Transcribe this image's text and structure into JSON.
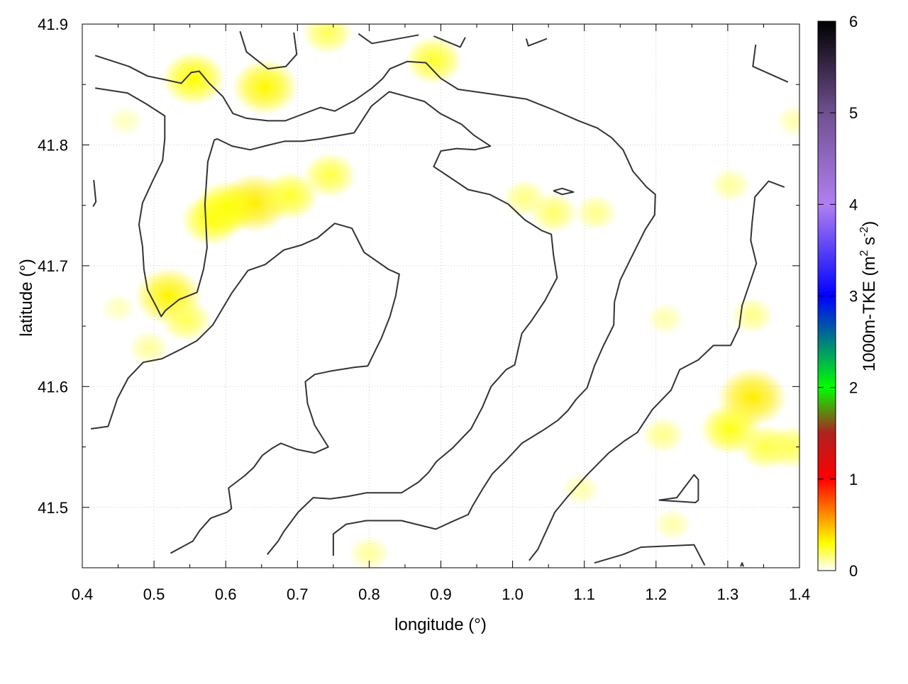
{
  "chart_data": {
    "type": "heatmap",
    "title": "",
    "xlabel": "longitude (°)",
    "ylabel": "latitude (°)",
    "xlim": [
      0.4,
      1.4
    ],
    "ylim": [
      41.45,
      41.9
    ],
    "xticks": [
      "0.4",
      "0.5",
      "0.6",
      "0.7",
      "0.8",
      "0.9",
      "1.0",
      "1.1",
      "1.2",
      "1.3",
      "1.4"
    ],
    "yticks": [
      "41.5",
      "41.6",
      "41.7",
      "41.8",
      "41.9"
    ],
    "grid": true,
    "colorbar": {
      "label": "1000m-TKE (m",
      "label_sup1": "2",
      "label_mid": " s",
      "label_sup2": "-2",
      "label_end": ")",
      "range": [
        0,
        6
      ],
      "ticks": [
        "0",
        "1",
        "2",
        "3",
        "4",
        "5",
        "6"
      ],
      "stops": [
        [
          0,
          "#ffffff"
        ],
        [
          0.3,
          "#ffff00"
        ],
        [
          1,
          "#ff0000"
        ],
        [
          1.5,
          "#b02020"
        ],
        [
          2,
          "#00ff00"
        ],
        [
          2.5,
          "#008080"
        ],
        [
          3,
          "#0000ff"
        ],
        [
          4,
          "#b080f0"
        ],
        [
          5,
          "#705090"
        ],
        [
          6,
          "#000000"
        ]
      ]
    },
    "contour_color": "#333333",
    "field_hotspots": [
      {
        "lon": 0.555,
        "lat": 41.855,
        "value": 0.3
      },
      {
        "lon": 0.655,
        "lat": 41.848,
        "value": 0.32
      },
      {
        "lon": 0.64,
        "lat": 41.752,
        "value": 0.35
      },
      {
        "lon": 0.6,
        "lat": 41.748,
        "value": 0.3
      },
      {
        "lon": 0.58,
        "lat": 41.738,
        "value": 0.28
      },
      {
        "lon": 0.69,
        "lat": 41.758,
        "value": 0.25
      },
      {
        "lon": 0.745,
        "lat": 41.775,
        "value": 0.22
      },
      {
        "lon": 0.52,
        "lat": 41.675,
        "value": 0.33
      },
      {
        "lon": 0.545,
        "lat": 41.655,
        "value": 0.2
      },
      {
        "lon": 0.493,
        "lat": 41.632,
        "value": 0.12
      },
      {
        "lon": 0.89,
        "lat": 41.87,
        "value": 0.25
      },
      {
        "lon": 0.742,
        "lat": 41.893,
        "value": 0.2
      },
      {
        "lon": 1.017,
        "lat": 41.756,
        "value": 0.15
      },
      {
        "lon": 1.057,
        "lat": 41.744,
        "value": 0.18
      },
      {
        "lon": 1.116,
        "lat": 41.744,
        "value": 0.14
      },
      {
        "lon": 1.334,
        "lat": 41.591,
        "value": 0.35
      },
      {
        "lon": 1.304,
        "lat": 41.565,
        "value": 0.28
      },
      {
        "lon": 1.353,
        "lat": 41.55,
        "value": 0.22
      },
      {
        "lon": 1.388,
        "lat": 41.55,
        "value": 0.2
      },
      {
        "lon": 1.21,
        "lat": 41.56,
        "value": 0.14
      },
      {
        "lon": 1.304,
        "lat": 41.767,
        "value": 0.12
      },
      {
        "lon": 1.334,
        "lat": 41.659,
        "value": 0.14
      },
      {
        "lon": 1.213,
        "lat": 41.656,
        "value": 0.1
      },
      {
        "lon": 0.8,
        "lat": 41.462,
        "value": 0.12
      },
      {
        "lon": 1.223,
        "lat": 41.486,
        "value": 0.1
      },
      {
        "lon": 1.095,
        "lat": 41.515,
        "value": 0.1
      },
      {
        "lon": 1.394,
        "lat": 41.82,
        "value": 0.1
      },
      {
        "lon": 0.46,
        "lat": 41.82,
        "value": 0.08
      },
      {
        "lon": 0.45,
        "lat": 41.665,
        "value": 0.08
      }
    ],
    "contours": [
      [
        [
          0.418,
          41.874
        ],
        [
          0.465,
          41.865
        ],
        [
          0.491,
          41.857
        ],
        [
          0.515,
          41.854
        ],
        [
          0.538,
          41.851
        ],
        [
          0.552,
          41.86
        ],
        [
          0.563,
          41.861
        ],
        [
          0.577,
          41.851
        ],
        [
          0.596,
          41.84
        ],
        [
          0.61,
          41.826
        ],
        [
          0.629,
          41.822
        ],
        [
          0.659,
          41.82
        ],
        [
          0.683,
          41.82
        ],
        [
          0.701,
          41.824
        ],
        [
          0.732,
          41.831
        ],
        [
          0.752,
          41.828
        ],
        [
          0.78,
          41.837
        ],
        [
          0.804,
          41.847
        ],
        [
          0.819,
          41.855
        ],
        [
          0.829,
          41.863
        ],
        [
          0.853,
          41.869
        ],
        [
          0.879,
          41.868
        ],
        [
          0.9,
          41.855
        ],
        [
          0.924,
          41.846
        ],
        [
          0.972,
          41.842
        ],
        [
          1.019,
          41.838
        ],
        [
          1.057,
          41.829
        ],
        [
          1.092,
          41.82
        ],
        [
          1.118,
          41.814
        ],
        [
          1.138,
          41.806
        ],
        [
          1.154,
          41.796
        ],
        [
          1.168,
          41.778
        ],
        [
          1.187,
          41.765
        ],
        [
          1.199,
          41.759
        ],
        [
          1.198,
          41.742
        ],
        [
          1.185,
          41.73
        ],
        [
          1.164,
          41.705
        ],
        [
          1.15,
          41.688
        ],
        [
          1.142,
          41.67
        ],
        [
          1.141,
          41.651
        ],
        [
          1.126,
          41.633
        ],
        [
          1.114,
          41.617
        ],
        [
          1.104,
          41.599
        ],
        [
          1.088,
          41.589
        ],
        [
          1.077,
          41.58
        ],
        [
          1.063,
          41.572
        ],
        [
          1.043,
          41.564
        ],
        [
          1.013,
          41.553
        ],
        [
          0.991,
          41.539
        ],
        [
          0.972,
          41.528
        ],
        [
          0.958,
          41.515
        ],
        [
          0.944,
          41.501
        ],
        [
          0.938,
          41.494
        ],
        [
          0.915,
          41.488
        ],
        [
          0.893,
          41.482
        ],
        [
          0.845,
          41.489
        ],
        [
          0.796,
          41.489
        ],
        [
          0.768,
          41.486
        ],
        [
          0.75,
          41.478
        ],
        [
          0.75,
          41.46
        ]
      ],
      [
        [
          0.418,
          41.847
        ],
        [
          0.463,
          41.843
        ],
        [
          0.489,
          41.834
        ],
        [
          0.515,
          41.824
        ],
        [
          0.515,
          41.805
        ],
        [
          0.512,
          41.787
        ],
        [
          0.498,
          41.77
        ],
        [
          0.484,
          41.752
        ],
        [
          0.479,
          41.734
        ],
        [
          0.484,
          41.716
        ],
        [
          0.486,
          41.697
        ],
        [
          0.491,
          41.68
        ],
        [
          0.505,
          41.664
        ],
        [
          0.51,
          41.658
        ],
        [
          0.516,
          41.663
        ],
        [
          0.535,
          41.672
        ],
        [
          0.56,
          41.678
        ],
        [
          0.569,
          41.697
        ],
        [
          0.574,
          41.715
        ],
        [
          0.571,
          41.751
        ],
        [
          0.575,
          41.786
        ],
        [
          0.584,
          41.804
        ],
        [
          0.588,
          41.805
        ],
        [
          0.609,
          41.799
        ],
        [
          0.634,
          41.796
        ],
        [
          0.661,
          41.8
        ],
        [
          0.682,
          41.803
        ],
        [
          0.707,
          41.803
        ],
        [
          0.732,
          41.805
        ],
        [
          0.779,
          41.81
        ],
        [
          0.803,
          41.832
        ],
        [
          0.828,
          41.844
        ],
        [
          0.853,
          41.84
        ],
        [
          0.877,
          41.836
        ],
        [
          0.899,
          41.826
        ],
        [
          0.929,
          41.817
        ],
        [
          0.946,
          41.808
        ],
        [
          0.969,
          41.799
        ],
        [
          0.947,
          41.796
        ],
        [
          0.922,
          41.797
        ],
        [
          0.9,
          41.795
        ],
        [
          0.89,
          41.782
        ],
        [
          0.913,
          41.773
        ],
        [
          0.938,
          41.763
        ],
        [
          0.968,
          41.759
        ],
        [
          0.994,
          41.751
        ],
        [
          1.017,
          41.738
        ],
        [
          1.041,
          41.729
        ],
        [
          1.054,
          41.726
        ],
        [
          1.057,
          41.709
        ],
        [
          1.062,
          41.69
        ],
        [
          1.045,
          41.671
        ],
        [
          1.027,
          41.655
        ],
        [
          1.013,
          41.644
        ],
        [
          1.009,
          41.634
        ],
        [
          1.003,
          41.618
        ],
        [
          0.991,
          41.614
        ],
        [
          0.97,
          41.6
        ],
        [
          0.958,
          41.583
        ],
        [
          0.942,
          41.565
        ],
        [
          0.916,
          41.549
        ],
        [
          0.894,
          41.538
        ],
        [
          0.883,
          41.529
        ],
        [
          0.869,
          41.521
        ],
        [
          0.845,
          41.512
        ],
        [
          0.796,
          41.512
        ],
        [
          0.77,
          41.509
        ],
        [
          0.746,
          41.507
        ],
        [
          0.722,
          41.508
        ],
        [
          0.701,
          41.496
        ],
        [
          0.681,
          41.48
        ],
        [
          0.673,
          41.472
        ],
        [
          0.658,
          41.461
        ]
      ],
      [
        [
          0.412,
          41.565
        ],
        [
          0.436,
          41.567
        ],
        [
          0.449,
          41.59
        ],
        [
          0.464,
          41.607
        ],
        [
          0.485,
          41.62
        ],
        [
          0.511,
          41.623
        ],
        [
          0.538,
          41.631
        ],
        [
          0.56,
          41.638
        ],
        [
          0.582,
          41.651
        ],
        [
          0.608,
          41.677
        ],
        [
          0.631,
          41.696
        ],
        [
          0.655,
          41.701
        ],
        [
          0.681,
          41.713
        ],
        [
          0.705,
          41.717
        ],
        [
          0.728,
          41.723
        ],
        [
          0.752,
          41.735
        ],
        [
          0.776,
          41.731
        ],
        [
          0.793,
          41.711
        ],
        [
          0.827,
          41.697
        ],
        [
          0.842,
          41.693
        ],
        [
          0.837,
          41.675
        ],
        [
          0.829,
          41.658
        ],
        [
          0.817,
          41.64
        ],
        [
          0.798,
          41.617
        ],
        [
          0.78,
          41.616
        ],
        [
          0.748,
          41.613
        ],
        [
          0.724,
          41.61
        ],
        [
          0.711,
          41.604
        ],
        [
          0.714,
          41.586
        ],
        [
          0.724,
          41.568
        ],
        [
          0.743,
          41.55
        ],
        [
          0.724,
          41.545
        ],
        [
          0.699,
          41.548
        ],
        [
          0.677,
          41.553
        ],
        [
          0.665,
          41.549
        ],
        [
          0.651,
          41.543
        ],
        [
          0.639,
          41.533
        ],
        [
          0.626,
          41.526
        ],
        [
          0.604,
          41.516
        ],
        [
          0.608,
          41.499
        ],
        [
          0.602,
          41.496
        ],
        [
          0.579,
          41.491
        ],
        [
          0.564,
          41.481
        ],
        [
          0.554,
          41.472
        ],
        [
          0.523,
          41.462
        ]
      ],
      [
        [
          1.023,
          41.456
        ],
        [
          1.035,
          41.465
        ],
        [
          1.059,
          41.496
        ],
        [
          1.077,
          41.509
        ],
        [
          1.104,
          41.527
        ],
        [
          1.134,
          41.545
        ],
        [
          1.156,
          41.555
        ],
        [
          1.174,
          41.562
        ],
        [
          1.195,
          41.581
        ],
        [
          1.221,
          41.597
        ],
        [
          1.233,
          41.614
        ],
        [
          1.259,
          41.622
        ],
        [
          1.28,
          41.634
        ],
        [
          1.304,
          41.634
        ],
        [
          1.316,
          41.649
        ],
        [
          1.32,
          41.667
        ],
        [
          1.332,
          41.688
        ],
        [
          1.34,
          41.702
        ],
        [
          1.332,
          41.721
        ],
        [
          1.334,
          41.736
        ],
        [
          1.338,
          41.757
        ],
        [
          1.357,
          41.77
        ],
        [
          1.379,
          41.765
        ]
      ],
      [
        [
          1.114,
          41.454
        ],
        [
          1.154,
          41.461
        ],
        [
          1.179,
          41.467
        ],
        [
          1.253,
          41.469
        ],
        [
          1.268,
          41.452
        ]
      ],
      [
        [
          1.204,
          41.506
        ],
        [
          1.229,
          41.508
        ],
        [
          1.253,
          41.527
        ],
        [
          1.259,
          41.523
        ],
        [
          1.259,
          41.506
        ],
        [
          1.255,
          41.504
        ],
        [
          1.204,
          41.506
        ]
      ],
      [
        [
          1.057,
          41.762
        ],
        [
          1.069,
          41.764
        ],
        [
          1.085,
          41.761
        ],
        [
          1.069,
          41.759
        ],
        [
          1.057,
          41.762
        ]
      ],
      [
        [
          0.62,
          41.894
        ],
        [
          0.629,
          41.877
        ],
        [
          0.659,
          41.863
        ],
        [
          0.684,
          41.865
        ],
        [
          0.699,
          41.875
        ],
        [
          0.695,
          41.893
        ]
      ],
      [
        [
          0.785,
          41.892
        ],
        [
          0.804,
          41.884
        ],
        [
          0.832,
          41.887
        ],
        [
          0.869,
          41.891
        ]
      ],
      [
        [
          0.89,
          41.89
        ],
        [
          0.927,
          41.881
        ],
        [
          0.934,
          41.889
        ]
      ],
      [
        [
          1.019,
          41.888
        ],
        [
          1.022,
          41.882
        ],
        [
          1.048,
          41.888
        ]
      ],
      [
        [
          1.339,
          41.883
        ],
        [
          1.335,
          41.865
        ],
        [
          1.384,
          41.852
        ]
      ],
      [
        [
          0.416,
          41.771
        ],
        [
          0.419,
          41.753
        ],
        [
          0.415,
          41.749
        ]
      ],
      [
        [
          1.318,
          41.451
        ],
        [
          1.32,
          41.454
        ],
        [
          1.322,
          41.451
        ]
      ]
    ]
  }
}
